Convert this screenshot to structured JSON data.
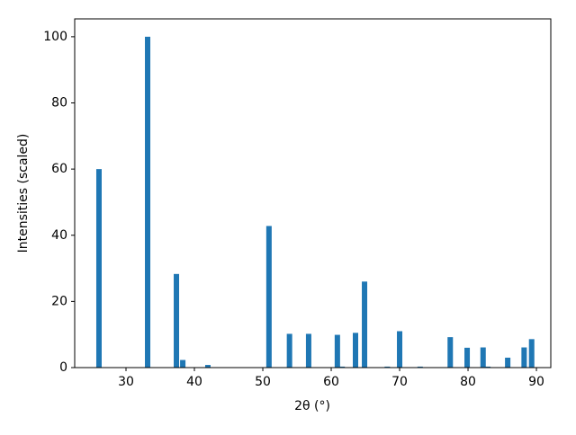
{
  "chart_data": {
    "type": "bar",
    "xlabel": "2θ (°)",
    "ylabel": "Intensities (scaled)",
    "x": [
      26.05,
      33.16,
      37.37,
      38.3,
      41.97,
      50.9,
      53.9,
      56.7,
      60.9,
      61.6,
      63.55,
      64.87,
      68.2,
      70.0,
      73.0,
      77.4,
      79.87,
      82.2,
      82.9,
      85.8,
      88.2,
      89.3
    ],
    "values": [
      60,
      100,
      28.3,
      2.3,
      0.8,
      42.8,
      10.2,
      10.2,
      9.9,
      0.3,
      10.5,
      26,
      0.3,
      11,
      0.3,
      9.2,
      6,
      6.1,
      0.3,
      3,
      6.1,
      8.6
    ],
    "color": "#1f77b4",
    "xlim": [
      22.5,
      92.1
    ],
    "xticks": [
      30,
      40,
      50,
      60,
      70,
      80,
      90
    ],
    "ylim": [
      0,
      105.4
    ],
    "yticks": [
      0,
      20,
      40,
      60,
      80,
      100
    ]
  }
}
